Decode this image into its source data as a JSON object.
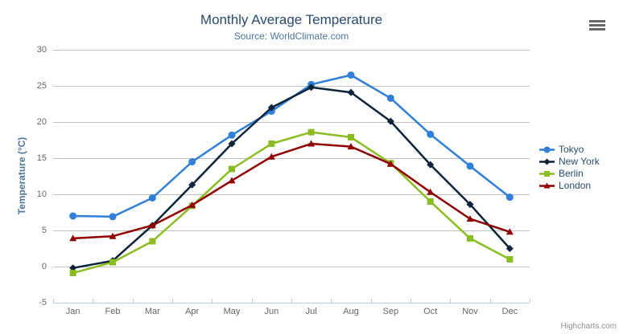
{
  "title": "Monthly Average Temperature",
  "subtitle": "Source: WorldClimate.com",
  "credits_label": "Highcharts.com",
  "colors": {
    "title": "#274b6d",
    "subtitle": "#4d759e",
    "grid": "#C0C0C0",
    "axis_line": "#C0D0E0",
    "tick": "#C0D0E0",
    "axis_label": "#666666",
    "y_axis_title": "#4d759e",
    "legend_text": "#274b6d",
    "burger_icon": "#666666",
    "credits": "#909090"
  },
  "chart_data": {
    "type": "line",
    "title": "Monthly Average Temperature",
    "subtitle": "Source: WorldClimate.com",
    "categories": [
      "Jan",
      "Feb",
      "Mar",
      "Apr",
      "May",
      "Jun",
      "Jul",
      "Aug",
      "Sep",
      "Oct",
      "Nov",
      "Dec"
    ],
    "series": [
      {
        "name": "Tokyo",
        "color": "#2f7ed8",
        "marker": "circle",
        "values": [
          7.0,
          6.9,
          9.5,
          14.5,
          18.2,
          21.5,
          25.2,
          26.5,
          23.3,
          18.3,
          13.9,
          9.6
        ]
      },
      {
        "name": "New York",
        "color": "#0d233a",
        "marker": "diamond",
        "values": [
          -0.2,
          0.8,
          5.7,
          11.3,
          17.0,
          22.0,
          24.8,
          24.1,
          20.1,
          14.1,
          8.6,
          2.5
        ]
      },
      {
        "name": "Berlin",
        "color": "#8bbc21",
        "marker": "square",
        "values": [
          -0.9,
          0.6,
          3.5,
          8.4,
          13.5,
          17.0,
          18.6,
          17.9,
          14.3,
          9.0,
          3.9,
          1.0
        ]
      },
      {
        "name": "London",
        "color": "#910000",
        "marker": "triangle",
        "values": [
          3.9,
          4.2,
          5.7,
          8.5,
          11.9,
          15.2,
          17.0,
          16.6,
          14.2,
          10.3,
          6.6,
          4.8
        ]
      }
    ],
    "xlabel": "",
    "ylabel": "Temperature (°C)",
    "ylim": [
      -5,
      30
    ],
    "ytick_step": 5,
    "grid": true,
    "legend_position": "right"
  }
}
